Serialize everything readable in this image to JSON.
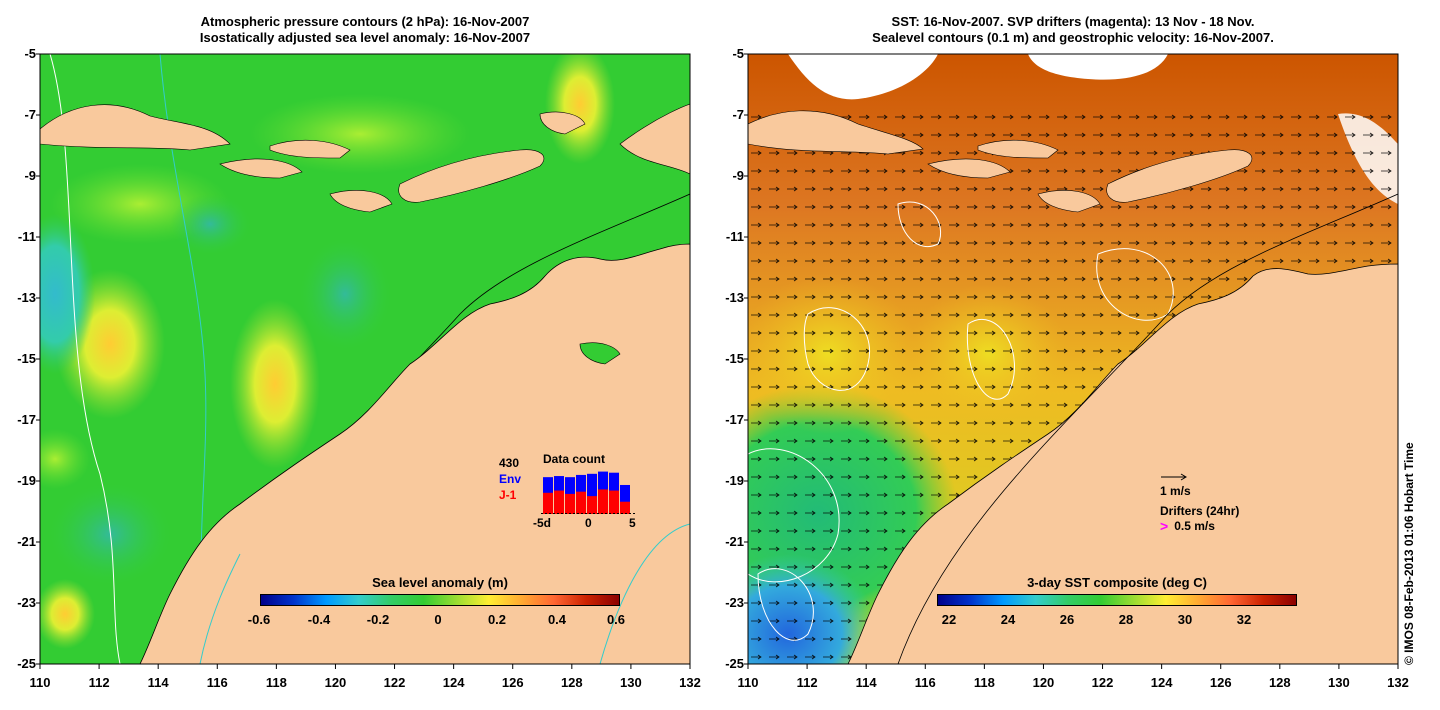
{
  "left_panel": {
    "title_line1": "Atmospheric pressure contours (2 hPa): 16-Nov-2007",
    "title_line2": "Isostatically adjusted sea level anomaly: 16-Nov-2007",
    "colorbar": {
      "title": "Sea level anomaly (m)",
      "ticks": [
        "-0.6",
        "-0.4",
        "-0.2",
        "0",
        "0.2",
        "0.4",
        "0.6"
      ]
    },
    "data_count": {
      "title": "Data count",
      "max_label": "430",
      "env_label": "Env",
      "j1_label": "J-1",
      "xticks": [
        "-5d",
        "0",
        "5"
      ],
      "env_values": [
        330,
        340,
        330,
        350,
        360,
        380,
        370,
        260
      ],
      "j1_values": [
        190,
        210,
        180,
        200,
        160,
        220,
        210,
        110
      ],
      "env_color": "#0000ff",
      "j1_color": "#ff0000"
    }
  },
  "right_panel": {
    "title_line1": "SST: 16-Nov-2007. SVP drifters (magenta): 13 Nov - 18 Nov.",
    "title_line2": "Sealevel contours (0.1 m) and geostrophic velocity: 16-Nov-2007.",
    "colorbar": {
      "title": "3-day SST composite (deg C)",
      "ticks": [
        "22",
        "24",
        "26",
        "28",
        "30",
        "32"
      ]
    },
    "legend": {
      "velocity_label": "1 m/s",
      "drifters_label": "Drifters (24hr)",
      "drifter_speed_label": "0.5 m/s",
      "drifter_color": "#ff00ff"
    }
  },
  "axes": {
    "x_ticks": [
      "110",
      "112",
      "114",
      "116",
      "118",
      "120",
      "122",
      "124",
      "126",
      "128",
      "130",
      "132"
    ],
    "y_ticks": [
      "-5",
      "-7",
      "-9",
      "-11",
      "-13",
      "-15",
      "-17",
      "-19",
      "-21",
      "-23",
      "-25"
    ]
  },
  "copyright": "© IMOS 08-Feb-2013 01:06 Hobart Time",
  "colors": {
    "land": "#f9c99d",
    "sea_base": "#33cc33",
    "bathymetry": "#33cccc"
  }
}
